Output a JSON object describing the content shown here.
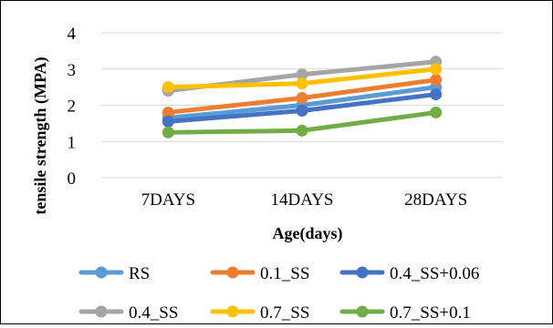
{
  "chart_data": {
    "type": "line",
    "categories": [
      "7DAYS",
      "14DAYS",
      "28DAYS"
    ],
    "xlabel": "Age(days)",
    "ylabel": "tensile strength  (MPA)",
    "ylim": [
      0,
      4
    ],
    "yticks": [
      "0",
      "1",
      "2",
      "3",
      "4"
    ],
    "grid": "horizontal",
    "legend_position": "bottom",
    "series": [
      {
        "name": "RS",
        "color": "#5b9bd5",
        "values": [
          1.65,
          2.0,
          2.5
        ]
      },
      {
        "name": "0.1_SS",
        "color": "#ed7d31",
        "values": [
          1.8,
          2.2,
          2.7
        ]
      },
      {
        "name": "0.4_SS+0.06",
        "color": "#4472c4",
        "values": [
          1.55,
          1.85,
          2.3
        ]
      },
      {
        "name": "0.4_SS",
        "color": "#a5a5a5",
        "values": [
          2.4,
          2.85,
          3.2
        ]
      },
      {
        "name": "0.7_SS",
        "color": "#ffc000",
        "values": [
          2.5,
          2.6,
          3.0
        ]
      },
      {
        "name": "0.7_SS+0.1",
        "color": "#70ad47",
        "values": [
          1.25,
          1.3,
          1.8
        ]
      }
    ]
  }
}
